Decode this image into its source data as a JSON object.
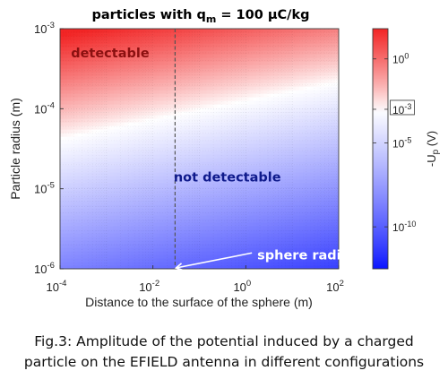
{
  "chart_data": {
    "type": "heatmap",
    "title": {
      "main": "particles with q",
      "sub": "m",
      "rest": " = 100 µC/kg"
    },
    "xlabel": "Distance to the surface of the sphere (m)",
    "ylabel": "Particle radius (m)",
    "x_scale": "log",
    "y_scale": "log",
    "xlim": [
      0.0001,
      100
    ],
    "ylim": [
      1e-06,
      0.001
    ],
    "x_ticks": [
      {
        "base": "10",
        "exp": "-4",
        "value": 0.0001
      },
      {
        "base": "10",
        "exp": "-2",
        "value": 0.01
      },
      {
        "base": "10",
        "exp": "0",
        "value": 1
      },
      {
        "base": "10",
        "exp": "2",
        "value": 100
      }
    ],
    "y_ticks": [
      {
        "base": "10",
        "exp": "-6",
        "value": 1e-06
      },
      {
        "base": "10",
        "exp": "-5",
        "value": 1e-05
      },
      {
        "base": "10",
        "exp": "-4",
        "value": 0.0001
      },
      {
        "base": "10",
        "exp": "-3",
        "value": 0.001
      }
    ],
    "colorbar": {
      "label": {
        "main": "-U",
        "sub": "p",
        "rest": " (V)"
      },
      "scale": "log",
      "range_exp": [
        -12.5,
        1.8
      ],
      "ticks": [
        {
          "base": "10",
          "exp": "0",
          "value": 1
        },
        {
          "base": "10",
          "exp": "-3",
          "value": 0.001,
          "boxed": true
        },
        {
          "base": "10",
          "exp": "-5",
          "value": 1e-05
        },
        {
          "base": "10",
          "exp": "-10",
          "value": 1e-10
        }
      ],
      "threshold_exp": -3,
      "colors": {
        "low": "#0a14ff",
        "mid": "#ffffff",
        "high": "#f22525"
      }
    },
    "threshold_line": {
      "description_x": 0.03,
      "style": "dashed"
    },
    "annotations": [
      {
        "text": "detectable",
        "x": 0.0012,
        "y": 0.0005,
        "color": "#8b1010"
      },
      {
        "text": "not detectable",
        "x": 0.4,
        "y": 1.4e-05,
        "color": "#0f1a8c"
      },
      {
        "text": "sphere radius",
        "x": 8,
        "y": 1.5e-06,
        "color": "#ffffff",
        "arrow_to_x": 0.03,
        "arrow_to_y": 1e-06
      }
    ]
  },
  "caption": {
    "line1": "Fig.3: Amplitude of the potential induced by a charged",
    "line2": "particle on the EFIELD antenna in different configurations"
  }
}
